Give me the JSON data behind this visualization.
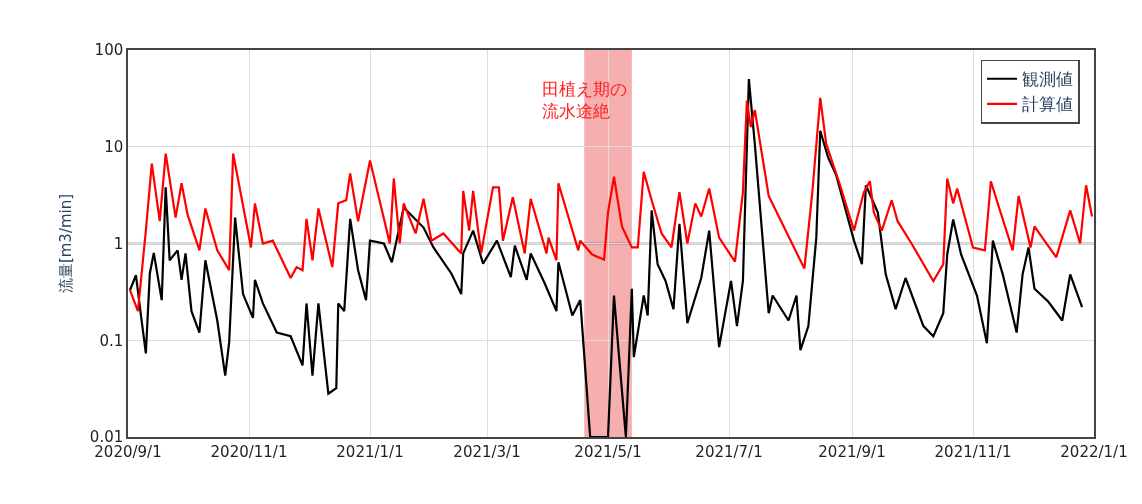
{
  "chart_data": {
    "type": "line",
    "ylabel": "流量[m3/min]",
    "log": true,
    "grid": true,
    "legend": "top right",
    "line_style": "solid",
    "marker": "none",
    "xlim": [
      "2020-09-01",
      "2022-01-01"
    ],
    "xticks": [
      {
        "value": "2020-09-01",
        "label": "2020/9/1"
      },
      {
        "value": "2020-11-01",
        "label": "2020/11/1"
      },
      {
        "value": "2021-01-01",
        "label": "2021/1/1"
      },
      {
        "value": "2021-03-01",
        "label": "2021/3/1"
      },
      {
        "value": "2021-05-01",
        "label": "2021/5/1"
      },
      {
        "value": "2021-07-01",
        "label": "2021/7/1"
      },
      {
        "value": "2021-09-01",
        "label": "2021/9/1"
      },
      {
        "value": "2021-11-01",
        "label": "2021/11/1"
      },
      {
        "value": "2022-01-01",
        "label": "2022/1/1"
      }
    ],
    "ylim": [
      0.01,
      100
    ],
    "yticks": [
      0.01,
      0.1,
      1,
      10,
      100
    ],
    "ref_lines": [
      {
        "axis": "y",
        "value": 1,
        "color": "#555555"
      }
    ],
    "bands": [
      {
        "axis": "x",
        "from": "2021-04-19",
        "to": "2021-05-13",
        "label": "田植え期の流水途絶",
        "color": "#f4a0a0"
      }
    ],
    "series": [
      {
        "name": "観測値",
        "color": "#000000",
        "x": [
          "2020-09-02",
          "2020-09-05",
          "2020-09-07",
          "2020-09-10",
          "2020-09-12",
          "2020-09-14",
          "2020-09-18",
          "2020-09-20",
          "2020-09-22",
          "2020-09-26",
          "2020-09-28",
          "2020-09-30",
          "2020-10-03",
          "2020-10-07",
          "2020-10-10",
          "2020-10-16",
          "2020-10-20",
          "2020-10-22",
          "2020-10-25",
          "2020-10-29",
          "2020-11-03",
          "2020-11-04",
          "2020-11-08",
          "2020-11-15",
          "2020-11-22",
          "2020-11-28",
          "2020-11-30",
          "2020-12-03",
          "2020-12-06",
          "2020-12-11",
          "2020-12-15",
          "2020-12-16",
          "2020-12-19",
          "2020-12-22",
          "2020-12-26",
          "2020-12-30",
          "2021-01-01",
          "2021-01-08",
          "2021-01-12",
          "2021-01-18",
          "2021-01-28",
          "2021-02-02",
          "2021-02-11",
          "2021-02-16",
          "2021-02-17",
          "2021-02-22",
          "2021-02-27",
          "2021-03-06",
          "2021-03-13",
          "2021-03-15",
          "2021-03-21",
          "2021-03-23",
          "2021-03-30",
          "2021-04-05",
          "2021-04-06",
          "2021-04-13",
          "2021-04-17",
          "2021-04-22",
          "2021-05-01",
          "2021-05-04",
          "2021-05-06",
          "2021-05-10",
          "2021-05-13",
          "2021-05-14",
          "2021-05-19",
          "2021-05-21",
          "2021-05-23",
          "2021-05-26",
          "2021-05-30",
          "2021-06-03",
          "2021-06-06",
          "2021-06-10",
          "2021-06-17",
          "2021-06-21",
          "2021-06-26",
          "2021-07-02",
          "2021-07-05",
          "2021-07-08",
          "2021-07-11",
          "2021-07-14",
          "2021-07-21",
          "2021-07-23",
          "2021-07-31",
          "2021-08-04",
          "2021-08-06",
          "2021-08-10",
          "2021-08-14",
          "2021-08-16",
          "2021-08-20",
          "2021-08-24",
          "2021-09-02",
          "2021-09-06",
          "2021-09-08",
          "2021-09-14",
          "2021-09-18",
          "2021-09-23",
          "2021-09-28",
          "2021-10-07",
          "2021-10-12",
          "2021-10-17",
          "2021-10-19",
          "2021-10-22",
          "2021-10-26",
          "2021-11-03",
          "2021-11-08",
          "2021-11-11",
          "2021-11-16",
          "2021-11-23",
          "2021-11-26",
          "2021-11-29",
          "2021-12-02",
          "2021-12-09",
          "2021-12-16",
          "2021-12-20",
          "2021-12-26"
        ],
        "values": [
          0.33,
          0.47,
          0.22,
          0.073,
          0.49,
          0.8,
          0.26,
          3.8,
          0.67,
          0.85,
          0.42,
          0.79,
          0.2,
          0.12,
          0.67,
          0.16,
          0.043,
          0.095,
          1.85,
          0.3,
          0.17,
          0.42,
          0.24,
          0.12,
          0.11,
          0.055,
          0.24,
          0.043,
          0.24,
          0.028,
          0.032,
          0.24,
          0.2,
          1.8,
          0.53,
          0.26,
          1.07,
          1.0,
          0.64,
          2.35,
          1.46,
          0.91,
          0.49,
          0.3,
          0.79,
          1.36,
          0.62,
          1.07,
          0.45,
          0.95,
          0.42,
          0.79,
          0.39,
          0.2,
          0.64,
          0.18,
          0.26,
          0.01,
          0.01,
          0.29,
          0.093,
          0.01,
          0.34,
          0.067,
          0.29,
          0.18,
          2.2,
          0.61,
          0.41,
          0.21,
          1.6,
          0.15,
          0.44,
          1.36,
          0.085,
          0.41,
          0.14,
          0.41,
          50,
          10.7,
          0.19,
          0.29,
          0.16,
          0.29,
          0.079,
          0.14,
          1.15,
          14.6,
          7.7,
          5.1,
          1.07,
          0.61,
          4.0,
          2.1,
          0.48,
          0.21,
          0.44,
          0.14,
          0.11,
          0.19,
          0.77,
          1.77,
          0.77,
          0.29,
          0.093,
          1.07,
          0.48,
          0.12,
          0.48,
          0.91,
          0.34,
          0.25,
          0.16,
          0.48,
          0.22
        ]
      },
      {
        "name": "計算値",
        "color": "#ff0000",
        "x": [
          "2020-09-02",
          "2020-09-06",
          "2020-09-10",
          "2020-09-13",
          "2020-09-17",
          "2020-09-20",
          "2020-09-25",
          "2020-09-28",
          "2020-10-01",
          "2020-10-07",
          "2020-10-10",
          "2020-10-16",
          "2020-10-22",
          "2020-10-24",
          "2020-11-02",
          "2020-11-04",
          "2020-11-08",
          "2020-11-13",
          "2020-11-17",
          "2020-11-22",
          "2020-11-25",
          "2020-11-28",
          "2020-11-30",
          "2020-12-03",
          "2020-12-06",
          "2020-12-13",
          "2020-12-16",
          "2020-12-20",
          "2020-12-22",
          "2020-12-26",
          "2021-01-01",
          "2021-01-11",
          "2021-01-13",
          "2021-01-16",
          "2021-01-18",
          "2021-01-24",
          "2021-01-28",
          "2021-02-01",
          "2021-02-07",
          "2021-02-16",
          "2021-02-17",
          "2021-02-20",
          "2021-02-22",
          "2021-02-26",
          "2021-03-04",
          "2021-03-07",
          "2021-03-09",
          "2021-03-14",
          "2021-03-20",
          "2021-03-23",
          "2021-03-31",
          "2021-04-01",
          "2021-04-05",
          "2021-04-06",
          "2021-04-16",
          "2021-04-17",
          "2021-04-23",
          "2021-04-29",
          "2021-05-01",
          "2021-05-04",
          "2021-05-08",
          "2021-05-13",
          "2021-05-16",
          "2021-05-19",
          "2021-05-23",
          "2021-05-28",
          "2021-06-02",
          "2021-06-06",
          "2021-06-10",
          "2021-06-14",
          "2021-06-17",
          "2021-06-21",
          "2021-06-26",
          "2021-07-04",
          "2021-07-08",
          "2021-07-10",
          "2021-07-12",
          "2021-07-14",
          "2021-07-21",
          "2021-08-08",
          "2021-08-12",
          "2021-08-16",
          "2021-08-19",
          "2021-08-26",
          "2021-09-02",
          "2021-09-07",
          "2021-09-10",
          "2021-09-12",
          "2021-09-16",
          "2021-09-21",
          "2021-09-24",
          "2021-10-01",
          "2021-10-12",
          "2021-10-17",
          "2021-10-19",
          "2021-10-22",
          "2021-10-24",
          "2021-11-01",
          "2021-11-07",
          "2021-11-10",
          "2021-11-14",
          "2021-11-21",
          "2021-11-24",
          "2021-11-30",
          "2021-12-02",
          "2021-12-07",
          "2021-12-13",
          "2021-12-20",
          "2021-12-25",
          "2021-12-28",
          "2021-12-31"
        ],
        "values": [
          0.33,
          0.2,
          1.36,
          6.7,
          1.7,
          8.5,
          1.85,
          4.2,
          2.0,
          0.85,
          2.3,
          0.85,
          0.53,
          8.5,
          0.91,
          2.6,
          1.0,
          1.07,
          0.72,
          0.44,
          0.57,
          0.53,
          1.8,
          0.67,
          2.3,
          0.57,
          2.6,
          2.8,
          5.3,
          1.7,
          7.2,
          1.0,
          4.7,
          1.0,
          2.6,
          1.27,
          2.9,
          1.07,
          1.27,
          0.79,
          3.5,
          1.36,
          3.5,
          0.79,
          3.8,
          3.8,
          1.07,
          3.0,
          0.79,
          2.9,
          0.79,
          1.15,
          0.67,
          4.2,
          0.85,
          1.07,
          0.77,
          0.68,
          2.1,
          4.9,
          1.5,
          0.91,
          0.91,
          5.5,
          2.8,
          1.27,
          0.91,
          3.4,
          1.0,
          2.6,
          1.9,
          3.7,
          1.15,
          0.65,
          3.4,
          30,
          16,
          24,
          3.1,
          0.55,
          3.4,
          32,
          10.7,
          4.0,
          1.36,
          3.4,
          4.4,
          2.1,
          1.36,
          2.8,
          1.7,
          1.0,
          0.41,
          0.61,
          4.7,
          2.6,
          3.7,
          0.91,
          0.85,
          4.4,
          2.4,
          0.85,
          3.1,
          0.91,
          1.5,
          1.07,
          0.72,
          2.2,
          1.0,
          4.0,
          1.9
        ]
      }
    ]
  }
}
